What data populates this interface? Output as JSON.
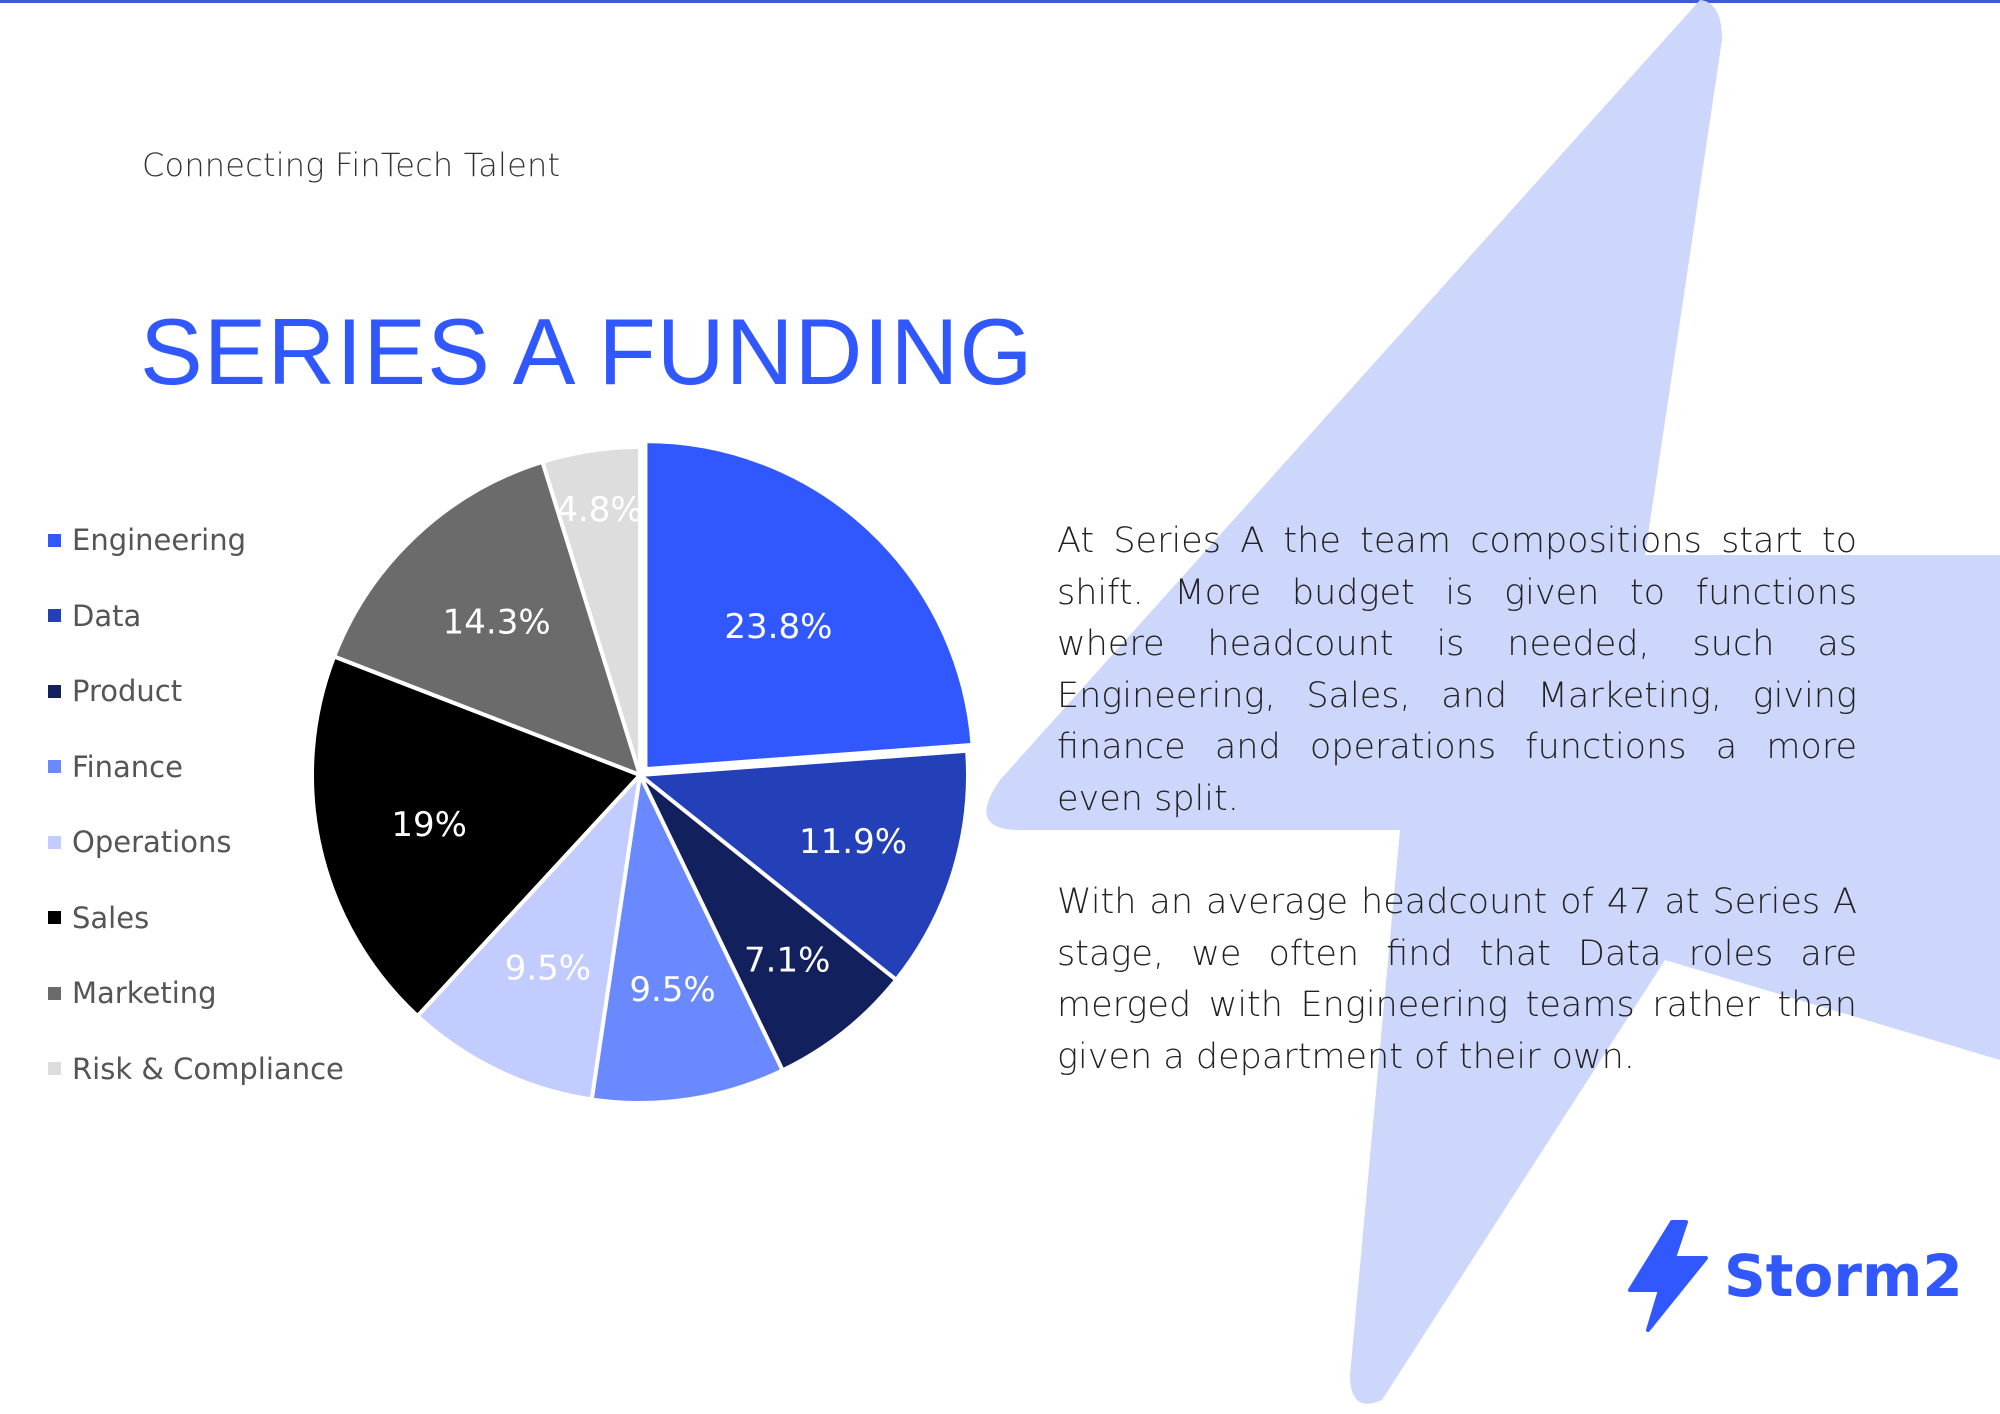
{
  "header": {
    "tagline": "Connecting FinTech Talent",
    "title": "SERIES A FUNDING"
  },
  "colors": {
    "accent": "#3158ff",
    "bolt_background": "#cdd6fb"
  },
  "chart_data": {
    "type": "pie",
    "title": "",
    "legend_position": "left",
    "categories": [
      "Engineering",
      "Data",
      "Product",
      "Finance",
      "Operations",
      "Sales",
      "Marketing",
      "Risk & Compliance"
    ],
    "values": [
      23.8,
      11.9,
      7.1,
      9.5,
      9.5,
      19,
      14.3,
      4.8
    ],
    "data_labels": [
      "23.8%",
      "11.9%",
      "7.1%",
      "9.5%",
      "9.5%",
      "19%",
      "14.3%",
      "4.8%"
    ],
    "colors": [
      "#3158ff",
      "#2340b8",
      "#13205e",
      "#6b89ff",
      "#c3ccfe",
      "#000000",
      "#6a6b6a",
      "#dddddd"
    ],
    "label_colors": [
      "#ffffff",
      "#ffffff",
      "#ffffff",
      "#ffffff",
      "#ffffff",
      "#ffffff",
      "#ffffff",
      "#ffffff"
    ]
  },
  "body": {
    "paragraph_1": "At Series A the team compositions start to shift. More budget is given to functions where headcount is needed, such as Engineering, Sales, and Marketing, giving finance and operations functions a more even split.",
    "paragraph_2": "With an average headcount of 47 at Series A stage, we often find that Data roles are merged with Engineering teams rather than given a department of their own."
  },
  "brand": {
    "name": "Storm2",
    "icon": "lightning-bolt-icon"
  }
}
